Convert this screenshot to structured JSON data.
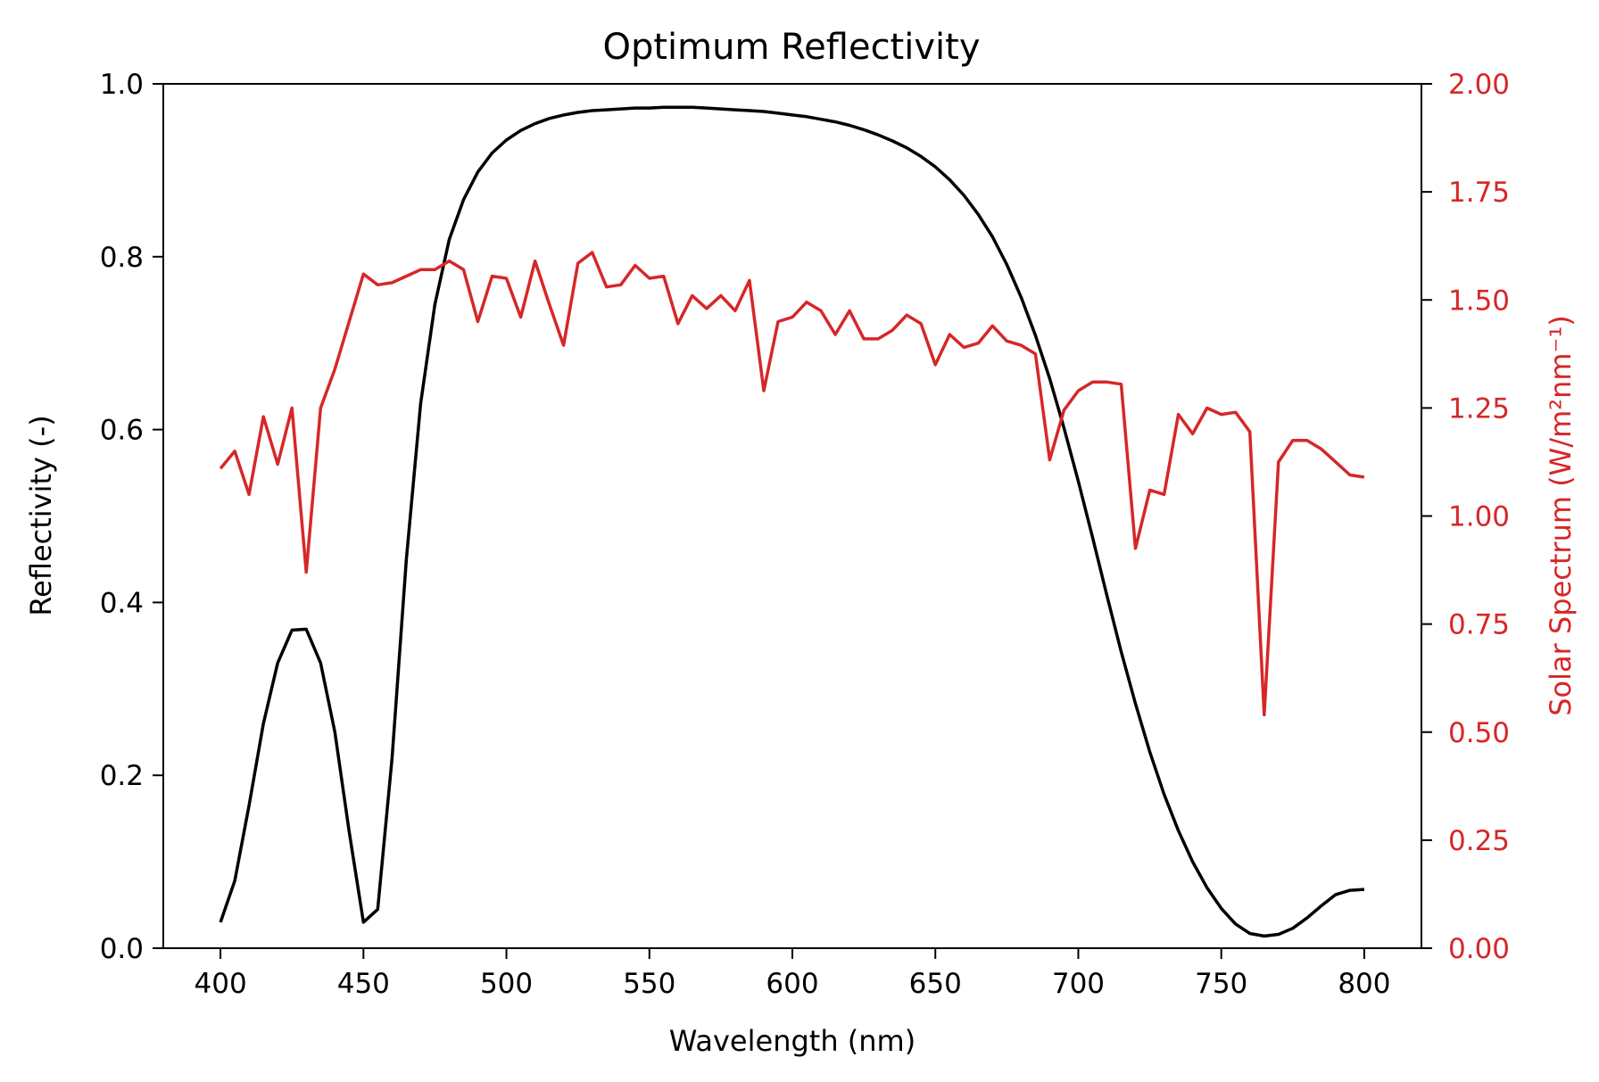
{
  "chart_data": {
    "type": "line",
    "title": "Optimum Reflectivity",
    "xlabel": "Wavelength (nm)",
    "ylabel": "Reflectivity (-)",
    "y2label": "Solar Spectrum (W/m²nm⁻¹)",
    "xlim": [
      380,
      820
    ],
    "ylim": [
      0,
      1.0
    ],
    "y2lim": [
      0,
      2.0
    ],
    "xticks": [
      "400",
      "450",
      "500",
      "550",
      "600",
      "650",
      "700",
      "750",
      "800"
    ],
    "yticks": [
      "0.0",
      "0.2",
      "0.4",
      "0.6",
      "0.8",
      "1.0"
    ],
    "y2ticks": [
      "0.00",
      "0.25",
      "0.50",
      "0.75",
      "1.00",
      "1.25",
      "1.50",
      "1.75",
      "2.00"
    ],
    "grid": false,
    "colors": {
      "reflectivity": "#000000",
      "solar": "#d62728",
      "axes": "#000000"
    },
    "series": [
      {
        "axis": "left",
        "color": "#000000",
        "x": [
          400,
          405,
          410,
          415,
          420,
          425,
          430,
          435,
          440,
          445,
          450,
          455,
          460,
          465,
          470,
          475,
          480,
          485,
          490,
          495,
          500,
          505,
          510,
          515,
          520,
          525,
          530,
          535,
          540,
          545,
          550,
          555,
          560,
          565,
          570,
          575,
          580,
          585,
          590,
          595,
          600,
          605,
          610,
          615,
          620,
          625,
          630,
          635,
          640,
          645,
          650,
          655,
          660,
          665,
          670,
          675,
          680,
          685,
          690,
          695,
          700,
          705,
          710,
          715,
          720,
          725,
          730,
          735,
          740,
          745,
          750,
          755,
          760,
          765,
          770,
          775,
          780,
          785,
          790,
          795,
          800
        ],
        "values": [
          0.03,
          0.078,
          0.165,
          0.26,
          0.33,
          0.368,
          0.369,
          0.33,
          0.25,
          0.135,
          0.03,
          0.045,
          0.22,
          0.45,
          0.63,
          0.745,
          0.82,
          0.866,
          0.898,
          0.92,
          0.935,
          0.946,
          0.954,
          0.96,
          0.964,
          0.967,
          0.969,
          0.97,
          0.971,
          0.972,
          0.972,
          0.973,
          0.973,
          0.973,
          0.972,
          0.971,
          0.97,
          0.969,
          0.968,
          0.966,
          0.964,
          0.962,
          0.959,
          0.956,
          0.952,
          0.947,
          0.941,
          0.934,
          0.926,
          0.916,
          0.904,
          0.889,
          0.871,
          0.849,
          0.823,
          0.791,
          0.753,
          0.709,
          0.659,
          0.602,
          0.54,
          0.475,
          0.408,
          0.343,
          0.283,
          0.227,
          0.178,
          0.136,
          0.1,
          0.07,
          0.046,
          0.028,
          0.017,
          0.014,
          0.016,
          0.023,
          0.035,
          0.049,
          0.062,
          0.067,
          0.068
        ]
      },
      {
        "axis": "right",
        "color": "#d62728",
        "x": [
          400,
          405,
          410,
          415,
          420,
          425,
          430,
          435,
          440,
          445,
          450,
          455,
          460,
          465,
          470,
          475,
          480,
          485,
          490,
          495,
          500,
          505,
          510,
          515,
          520,
          525,
          530,
          535,
          540,
          545,
          550,
          555,
          560,
          565,
          570,
          575,
          580,
          585,
          590,
          595,
          600,
          605,
          610,
          615,
          620,
          625,
          630,
          635,
          640,
          645,
          650,
          655,
          660,
          665,
          670,
          675,
          680,
          685,
          690,
          695,
          700,
          705,
          710,
          715,
          720,
          725,
          730,
          735,
          740,
          745,
          750,
          755,
          760,
          765,
          770,
          775,
          780,
          785,
          790,
          795,
          800
        ],
        "values": [
          1.11,
          1.15,
          1.05,
          1.23,
          1.12,
          1.25,
          0.87,
          1.25,
          1.34,
          1.45,
          1.56,
          1.535,
          1.54,
          1.555,
          1.57,
          1.57,
          1.59,
          1.57,
          1.45,
          1.555,
          1.55,
          1.46,
          1.59,
          1.49,
          1.395,
          1.585,
          1.61,
          1.53,
          1.535,
          1.58,
          1.55,
          1.555,
          1.445,
          1.51,
          1.48,
          1.51,
          1.475,
          1.545,
          1.29,
          1.45,
          1.46,
          1.495,
          1.475,
          1.42,
          1.475,
          1.41,
          1.41,
          1.43,
          1.465,
          1.445,
          1.35,
          1.42,
          1.39,
          1.4,
          1.44,
          1.405,
          1.395,
          1.375,
          1.13,
          1.245,
          1.29,
          1.31,
          1.31,
          1.305,
          0.925,
          1.06,
          1.05,
          1.235,
          1.19,
          1.25,
          1.235,
          1.24,
          1.195,
          0.54,
          1.125,
          1.175,
          1.175,
          1.155,
          1.125,
          1.095,
          1.09
        ]
      }
    ]
  }
}
